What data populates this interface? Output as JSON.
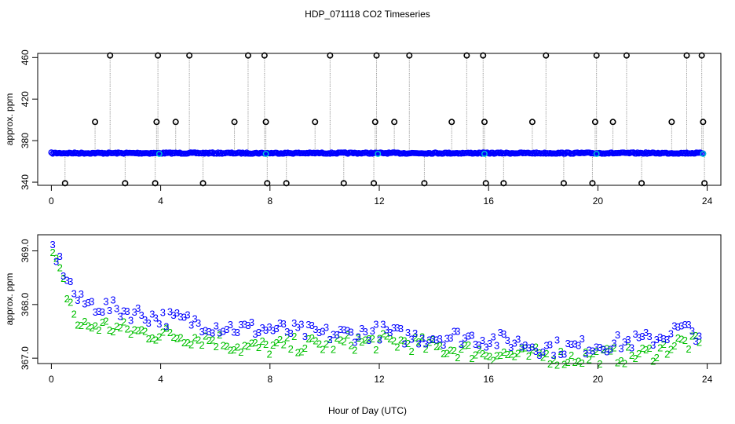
{
  "title": "HDP_071118  CO2 Timeseries",
  "colors": {
    "black": "#000000",
    "blue": "#0000ff",
    "cyan": "#00c8d2",
    "green": "#00c000",
    "drop": "#999999"
  },
  "chart_data": [
    {
      "type": "scatter",
      "panel": "top",
      "title": "HDP_071118  CO2 Timeseries",
      "xlabel": "",
      "ylabel": "approx. ppm",
      "xlim": [
        -0.5,
        24.5
      ],
      "ylim": [
        337,
        464
      ],
      "xticks": [
        0,
        4,
        8,
        12,
        16,
        20,
        24
      ],
      "yticks": [
        340,
        380,
        420,
        460
      ],
      "baseline": 368,
      "series": [
        {
          "name": "baseline",
          "color": "blue",
          "x_start": 0.0,
          "x_end": 23.85,
          "x_step": 0.05,
          "value": 368
        },
        {
          "name": "high spikes",
          "color": "black",
          "value": 462,
          "x": [
            2.15,
            3.9,
            5.05,
            7.2,
            7.8,
            10.2,
            11.9,
            13.1,
            15.2,
            15.8,
            18.1,
            19.95,
            21.05,
            23.25,
            23.8
          ]
        },
        {
          "name": "mid spikes",
          "color": "black",
          "value": 398,
          "x": [
            1.6,
            3.85,
            4.55,
            6.7,
            7.85,
            9.65,
            11.85,
            12.55,
            14.65,
            15.85,
            17.6,
            19.9,
            20.55,
            22.7,
            23.85
          ]
        },
        {
          "name": "low spikes",
          "color": "black",
          "value": 339,
          "x": [
            0.5,
            2.7,
            3.8,
            5.55,
            7.9,
            8.6,
            10.7,
            11.8,
            13.65,
            15.9,
            16.55,
            18.75,
            19.8,
            21.6,
            23.9
          ]
        },
        {
          "name": "marked points",
          "color": "cyan",
          "value": 367,
          "x": [
            3.95,
            7.85,
            11.95,
            15.85,
            19.95,
            23.85
          ]
        }
      ]
    },
    {
      "type": "scatter",
      "panel": "bottom",
      "xlabel": "Hour of Day (UTC)",
      "ylabel": "approx. ppm",
      "xlim": [
        -0.5,
        24.5
      ],
      "ylim": [
        366.9,
        369.3
      ],
      "xticks": [
        0,
        4,
        8,
        12,
        16,
        20,
        24
      ],
      "yticks": [
        367.0,
        368.0,
        369.0
      ],
      "series": [
        {
          "name": "3",
          "label": "3",
          "color": "blue",
          "x": [
            0,
            1,
            2,
            3,
            4,
            5,
            6,
            7,
            8,
            9,
            10,
            11,
            12,
            13,
            14,
            15,
            16,
            17,
            18,
            19,
            20,
            21,
            22,
            23,
            23.8
          ],
          "values": [
            369.1,
            368.05,
            367.95,
            367.85,
            367.75,
            367.7,
            367.6,
            367.55,
            367.55,
            367.5,
            367.45,
            367.45,
            367.5,
            367.4,
            367.4,
            367.4,
            367.35,
            367.3,
            367.2,
            367.2,
            367.25,
            367.3,
            367.35,
            367.55,
            367.45
          ]
        },
        {
          "name": "2",
          "label": "2",
          "color": "green",
          "x": [
            0,
            1,
            2,
            3,
            4,
            5,
            6,
            7,
            8,
            9,
            10,
            11,
            12,
            13,
            14,
            15,
            16,
            17,
            18,
            19,
            20,
            21,
            22,
            23,
            23.8
          ],
          "values": [
            369.0,
            367.6,
            367.6,
            367.5,
            367.45,
            367.4,
            367.35,
            367.2,
            367.2,
            367.25,
            367.25,
            367.3,
            367.3,
            367.3,
            367.2,
            367.15,
            367.1,
            367.05,
            367.05,
            367.0,
            367.05,
            367.05,
            367.1,
            367.3,
            367.25
          ]
        }
      ]
    }
  ]
}
